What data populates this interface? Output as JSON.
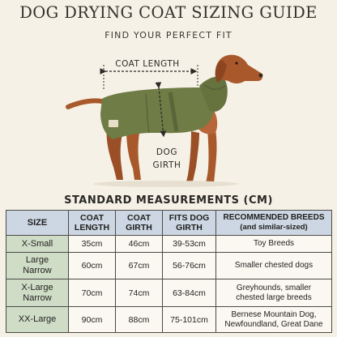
{
  "title": "DOG DRYING COAT SIZING GUIDE",
  "subtitle": "FIND YOUR PERFECT FIT",
  "diagram": {
    "coat_length_label": "COAT LENGTH",
    "dog_girth_line1": "DOG",
    "dog_girth_line2": "GIRTH",
    "colors": {
      "coat": "#6f7c46",
      "dog": "#a8582b",
      "arrow": "#2b2a27"
    }
  },
  "section_title": "STANDARD MEASUREMENTS (CM)",
  "table": {
    "headers": {
      "size": "SIZE",
      "coat_length_1": "COAT",
      "coat_length_2": "LENGTH",
      "coat_girth_1": "COAT",
      "coat_girth_2": "GIRTH",
      "fits_dog_girth_1": "FITS DOG",
      "fits_dog_girth_2": "GIRTH",
      "breeds_1": "RECOMMENDED BREEDS",
      "breeds_2": "(and similar-sized)"
    },
    "rows": [
      {
        "size_1": "X-Small",
        "size_2": "",
        "coat_length": "35cm",
        "coat_girth": "46cm",
        "fits_dog_girth": "39-53cm",
        "breeds_1": "Toy Breeds",
        "breeds_2": ""
      },
      {
        "size_1": "Large",
        "size_2": "Narrow",
        "coat_length": "60cm",
        "coat_girth": "67cm",
        "fits_dog_girth": "56-76cm",
        "breeds_1": "Smaller chested dogs",
        "breeds_2": ""
      },
      {
        "size_1": "X-Large",
        "size_2": "Narrow",
        "coat_length": "70cm",
        "coat_girth": "74cm",
        "fits_dog_girth": "63-84cm",
        "breeds_1": "Greyhounds, smaller",
        "breeds_2": "chested large breeds"
      },
      {
        "size_1": "XX-Large",
        "size_2": "",
        "coat_length": "90cm",
        "coat_girth": "88cm",
        "fits_dog_girth": "75-101cm",
        "breeds_1": "Bernese Mountain Dog,",
        "breeds_2": "Newfoundland, Great Dane"
      }
    ],
    "colors": {
      "header_bg": "#cdd7e3",
      "size_col_bg": "#cfdcc6",
      "cell_bg": "#fbf8f1"
    }
  }
}
